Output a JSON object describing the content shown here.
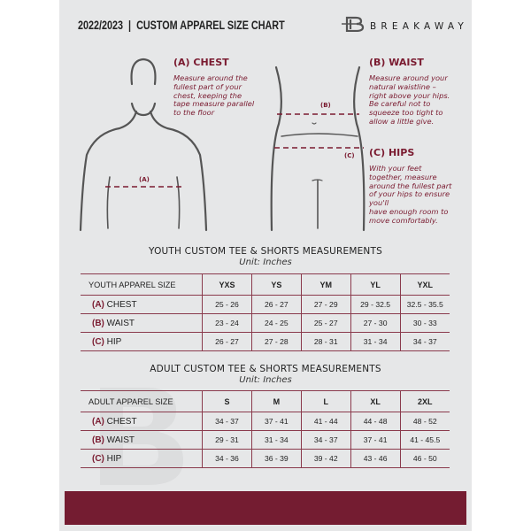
{
  "header": {
    "title": "2022/2023  |  CUSTOM APPAREL SIZE CHART",
    "brand": "BREAKAWAY"
  },
  "measures": {
    "chest": {
      "heading": "(A) CHEST",
      "text": [
        "Measure around the",
        "fullest part of your",
        "chest, keeping the",
        "tape measure parallel",
        "to the floor"
      ],
      "marker": "(A)"
    },
    "waist": {
      "heading": "(B) WAIST",
      "text": [
        "Measure around your",
        "natural waistline –",
        "right above your hips.",
        "Be careful not to",
        "squeeze too tight to",
        "allow a little give."
      ],
      "marker": "(B)"
    },
    "hips": {
      "heading": "(C) HIPS",
      "text": [
        "With your feet",
        "together, measure",
        "around the fullest part",
        "of your hips to ensure",
        "you'll",
        "have enough room to",
        "move comfortably."
      ],
      "marker": "(C)"
    }
  },
  "youth": {
    "title": "YOUTH CUSTOM TEE & SHORTS MEASUREMENTS",
    "unit": "Unit: Inches",
    "label": "YOUTH APPAREL SIZE",
    "sizes": [
      "YXS",
      "YS",
      "YM",
      "YL",
      "YXL"
    ],
    "rows": [
      {
        "code": "(A)",
        "name": "CHEST",
        "values": [
          "25 - 26",
          "26 - 27",
          "27 - 29",
          "29 - 32.5",
          "32.5 - 35.5"
        ]
      },
      {
        "code": "(B)",
        "name": "WAIST",
        "values": [
          "23 - 24",
          "24 - 25",
          "25 - 27",
          "27 - 30",
          "30 - 33"
        ]
      },
      {
        "code": "(C)",
        "name": "HIP",
        "values": [
          "26 - 27",
          "27 - 28",
          "28 - 31",
          "31 - 34",
          "34 - 37"
        ]
      }
    ]
  },
  "adult": {
    "title": "ADULT CUSTOM TEE & SHORTS MEASUREMENTS",
    "unit": "Unit: Inches",
    "label": "ADULT APPAREL SIZE",
    "sizes": [
      "S",
      "M",
      "L",
      "XL",
      "2XL"
    ],
    "rows": [
      {
        "code": "(A)",
        "name": "CHEST",
        "values": [
          "34 - 37",
          "37 - 41",
          "41 - 44",
          "44 - 48",
          "48 - 52"
        ]
      },
      {
        "code": "(B)",
        "name": "WAIST",
        "values": [
          "29 - 31",
          "31 - 34",
          "34 - 37",
          "37 - 41",
          "41 - 45.5"
        ]
      },
      {
        "code": "(C)",
        "name": "HIP",
        "values": [
          "34 - 36",
          "36 - 39",
          "39 - 42",
          "43 - 46",
          "46 - 50"
        ]
      }
    ]
  },
  "colors": {
    "accent": "#741c31",
    "page": "#e6e7e8"
  }
}
